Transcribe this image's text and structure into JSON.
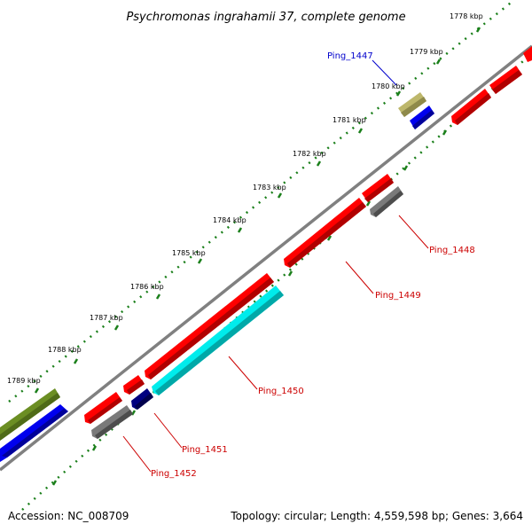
{
  "title": "Psychromonas ingrahamii 37, complete genome",
  "footer": {
    "accession": "Accession: NC_008709",
    "summary": "Topology: circular; Length: 4,559,598 bp; Genes: 3,664"
  },
  "ticks": [
    "1778 kbp",
    "1779 kbp",
    "1780 kbp",
    "1781 kbp",
    "1782 kbp",
    "1783 kbp",
    "1784 kbp",
    "1785 kbp",
    "1786 kbp",
    "1787 kbp",
    "1788 kbp",
    "1789 kbp"
  ],
  "gene_labels": {
    "g1447": "Ping_1447",
    "g1448": "Ping_1448",
    "g1449": "Ping_1449",
    "g1450": "Ping_1450",
    "g1451": "Ping_1451",
    "g1452": "Ping_1452"
  },
  "colors": {
    "backbone": "#808080",
    "dots": "#1a7f1a",
    "red": "#ff0000",
    "blue": "#0000ee",
    "navy": "#000080",
    "cyan": "#00e5e5",
    "gray": "#777777",
    "khaki": "#b5b06a",
    "olive": "#6b8e23",
    "label_red": "#cc0000",
    "label_blue": "#0000cc"
  }
}
